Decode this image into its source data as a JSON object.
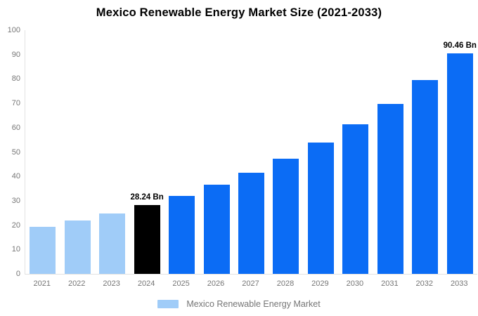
{
  "chart_data": {
    "type": "bar",
    "title": "Mexico Renewable Energy Market Size (2021-2033)",
    "xlabel": "",
    "ylabel": "",
    "categories": [
      "2021",
      "2022",
      "2023",
      "2024",
      "2025",
      "2026",
      "2027",
      "2028",
      "2029",
      "2030",
      "2031",
      "2032",
      "2033"
    ],
    "values": [
      19.2,
      21.8,
      24.8,
      28.24,
      32.1,
      36.6,
      41.6,
      47.4,
      53.9,
      61.4,
      69.8,
      79.5,
      90.46
    ],
    "bar_roles": [
      "historical",
      "historical",
      "historical",
      "base",
      "forecast",
      "forecast",
      "forecast",
      "forecast",
      "forecast",
      "forecast",
      "forecast",
      "forecast",
      "forecast"
    ],
    "point_labels": [
      "",
      "",
      "",
      "28.24 Bn",
      "",
      "",
      "",
      "",
      "",
      "",
      "",
      "",
      "90.46 Bn"
    ],
    "ylim": [
      0,
      100
    ],
    "y_ticks": [
      0,
      10,
      20,
      30,
      40,
      50,
      60,
      70,
      80,
      90,
      100
    ],
    "grid": false,
    "legend": {
      "label": "Mexico Renewable Energy Market",
      "position": "bottom",
      "swatch_color": "#a0ccf8"
    },
    "colors": {
      "historical": "#a0ccf8",
      "base": "#000000",
      "forecast": "#0b6cf5",
      "axis_line": "#e2e2e2",
      "tick_label": "#757575",
      "title": "#000000",
      "background": "#ffffff"
    }
  }
}
